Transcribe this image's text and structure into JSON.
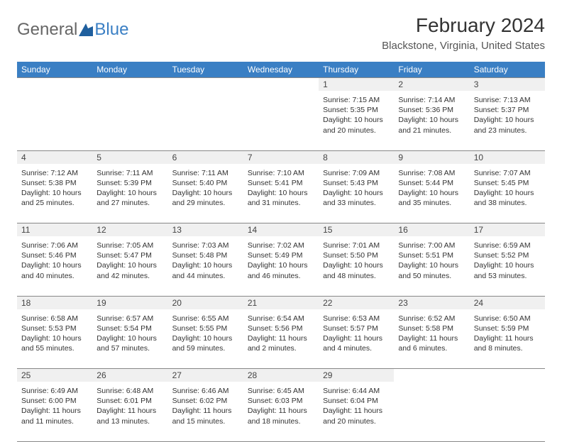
{
  "logo": {
    "part1": "General",
    "part2": "Blue"
  },
  "title": "February 2024",
  "location": "Blackstone, Virginia, United States",
  "colors": {
    "header_bg": "#3a7fc4",
    "header_text": "#ffffff",
    "date_bg": "#f0f0f0",
    "border": "#888888",
    "text": "#333333",
    "logo_gray": "#666666",
    "logo_blue": "#3a7fc4"
  },
  "day_headers": [
    "Sunday",
    "Monday",
    "Tuesday",
    "Wednesday",
    "Thursday",
    "Friday",
    "Saturday"
  ],
  "weeks": [
    [
      null,
      null,
      null,
      null,
      {
        "d": "1",
        "sr": "7:15 AM",
        "ss": "5:35 PM",
        "dl": "10 hours and 20 minutes."
      },
      {
        "d": "2",
        "sr": "7:14 AM",
        "ss": "5:36 PM",
        "dl": "10 hours and 21 minutes."
      },
      {
        "d": "3",
        "sr": "7:13 AM",
        "ss": "5:37 PM",
        "dl": "10 hours and 23 minutes."
      }
    ],
    [
      {
        "d": "4",
        "sr": "7:12 AM",
        "ss": "5:38 PM",
        "dl": "10 hours and 25 minutes."
      },
      {
        "d": "5",
        "sr": "7:11 AM",
        "ss": "5:39 PM",
        "dl": "10 hours and 27 minutes."
      },
      {
        "d": "6",
        "sr": "7:11 AM",
        "ss": "5:40 PM",
        "dl": "10 hours and 29 minutes."
      },
      {
        "d": "7",
        "sr": "7:10 AM",
        "ss": "5:41 PM",
        "dl": "10 hours and 31 minutes."
      },
      {
        "d": "8",
        "sr": "7:09 AM",
        "ss": "5:43 PM",
        "dl": "10 hours and 33 minutes."
      },
      {
        "d": "9",
        "sr": "7:08 AM",
        "ss": "5:44 PM",
        "dl": "10 hours and 35 minutes."
      },
      {
        "d": "10",
        "sr": "7:07 AM",
        "ss": "5:45 PM",
        "dl": "10 hours and 38 minutes."
      }
    ],
    [
      {
        "d": "11",
        "sr": "7:06 AM",
        "ss": "5:46 PM",
        "dl": "10 hours and 40 minutes."
      },
      {
        "d": "12",
        "sr": "7:05 AM",
        "ss": "5:47 PM",
        "dl": "10 hours and 42 minutes."
      },
      {
        "d": "13",
        "sr": "7:03 AM",
        "ss": "5:48 PM",
        "dl": "10 hours and 44 minutes."
      },
      {
        "d": "14",
        "sr": "7:02 AM",
        "ss": "5:49 PM",
        "dl": "10 hours and 46 minutes."
      },
      {
        "d": "15",
        "sr": "7:01 AM",
        "ss": "5:50 PM",
        "dl": "10 hours and 48 minutes."
      },
      {
        "d": "16",
        "sr": "7:00 AM",
        "ss": "5:51 PM",
        "dl": "10 hours and 50 minutes."
      },
      {
        "d": "17",
        "sr": "6:59 AM",
        "ss": "5:52 PM",
        "dl": "10 hours and 53 minutes."
      }
    ],
    [
      {
        "d": "18",
        "sr": "6:58 AM",
        "ss": "5:53 PM",
        "dl": "10 hours and 55 minutes."
      },
      {
        "d": "19",
        "sr": "6:57 AM",
        "ss": "5:54 PM",
        "dl": "10 hours and 57 minutes."
      },
      {
        "d": "20",
        "sr": "6:55 AM",
        "ss": "5:55 PM",
        "dl": "10 hours and 59 minutes."
      },
      {
        "d": "21",
        "sr": "6:54 AM",
        "ss": "5:56 PM",
        "dl": "11 hours and 2 minutes."
      },
      {
        "d": "22",
        "sr": "6:53 AM",
        "ss": "5:57 PM",
        "dl": "11 hours and 4 minutes."
      },
      {
        "d": "23",
        "sr": "6:52 AM",
        "ss": "5:58 PM",
        "dl": "11 hours and 6 minutes."
      },
      {
        "d": "24",
        "sr": "6:50 AM",
        "ss": "5:59 PM",
        "dl": "11 hours and 8 minutes."
      }
    ],
    [
      {
        "d": "25",
        "sr": "6:49 AM",
        "ss": "6:00 PM",
        "dl": "11 hours and 11 minutes."
      },
      {
        "d": "26",
        "sr": "6:48 AM",
        "ss": "6:01 PM",
        "dl": "11 hours and 13 minutes."
      },
      {
        "d": "27",
        "sr": "6:46 AM",
        "ss": "6:02 PM",
        "dl": "11 hours and 15 minutes."
      },
      {
        "d": "28",
        "sr": "6:45 AM",
        "ss": "6:03 PM",
        "dl": "11 hours and 18 minutes."
      },
      {
        "d": "29",
        "sr": "6:44 AM",
        "ss": "6:04 PM",
        "dl": "11 hours and 20 minutes."
      },
      null,
      null
    ]
  ],
  "labels": {
    "sunrise": "Sunrise:",
    "sunset": "Sunset:",
    "daylight": "Daylight:"
  }
}
